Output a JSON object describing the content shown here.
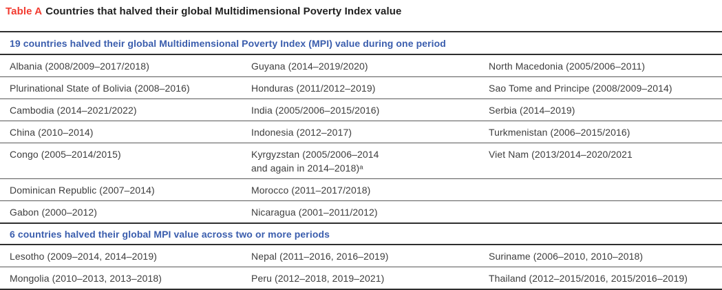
{
  "title": {
    "label": "Table A",
    "text": "Countries that halved their global Multidimensional Poverty Index value"
  },
  "colors": {
    "accent_red": "#F23B30",
    "accent_blue": "#3A5DAD",
    "title_text": "#212121",
    "row_text": "#3d3d3d",
    "rule_dark": "#2e2e2e",
    "rule_light": "#585858",
    "background": "#ffffff"
  },
  "sections": [
    {
      "header": "19 countries halved their global Multidimensional Poverty Index (MPI) value during one period",
      "rows": [
        [
          "Albania (2008/2009–2017/2018)",
          "Guyana (2014–2019/2020)",
          "North Macedonia (2005/2006–2011)"
        ],
        [
          "Plurinational State of Bolivia (2008–2016)",
          "Honduras (2011/2012–2019)",
          "Sao Tome and Principe (2008/2009–2014)"
        ],
        [
          "Cambodia (2014–2021/2022)",
          "India (2005/2006–2015/2016)",
          "Serbia (2014–2019)"
        ],
        [
          "China (2010–2014)",
          "Indonesia (2012–2017)",
          "Turkmenistan (2006–2015/2016)"
        ],
        [
          "Congo (2005–2014/2015)",
          "Kyrgyzstan (2005/2006–2014\nand again in 2014–2018)ᵃ",
          "Viet Nam (2013/2014–2020/2021"
        ],
        [
          "Dominican Republic (2007–2014)",
          "Morocco (2011–2017/2018)",
          ""
        ],
        [
          "Gabon (2000–2012)",
          "Nicaragua (2001–2011/2012)",
          ""
        ]
      ]
    },
    {
      "header": "6 countries halved their global MPI value across two or more periods",
      "rows": [
        [
          "Lesotho (2009–2014, 2014–2019)",
          "Nepal (2011–2016, 2016–2019)",
          "Suriname (2006–2010, 2010–2018)"
        ],
        [
          "Mongolia (2010–2013, 2013–2018)",
          "Peru (2012–2018, 2019–2021)",
          "Thailand (2012–2015/2016, 2015/2016–2019)"
        ]
      ]
    }
  ]
}
